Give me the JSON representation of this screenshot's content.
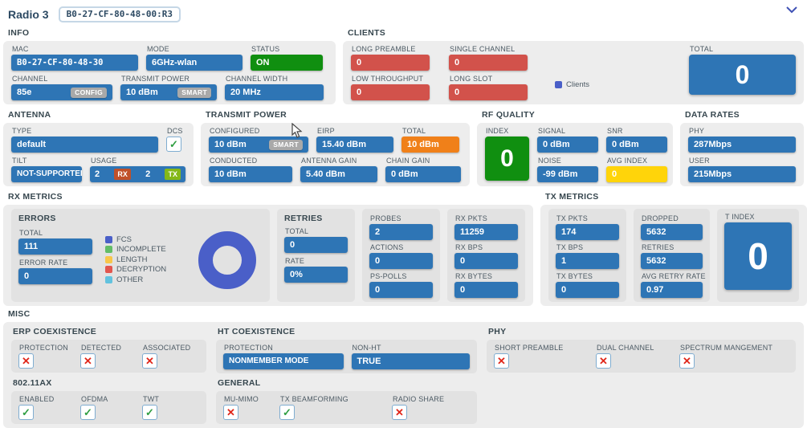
{
  "colors": {
    "blue": "#2e75b5",
    "red": "#d2524b",
    "green": "#108f10",
    "orange": "#f08019",
    "yellow": "#ffd40a",
    "navy": "#2d4a63",
    "panel": "#ededed",
    "subpanel": "#e2e2e2",
    "indigo": "#3f51b5",
    "check_green": "#2f9e41",
    "cross_red": "#e02619",
    "rx_badge": "#c05029",
    "tx_badge": "#84b818",
    "badge_gray": "#a9a9a9",
    "checkbox_border": "#7fadd1",
    "label": "#4c5a64",
    "sec_label": "#37474f"
  },
  "header": {
    "title": "Radio 3",
    "badge": "B0-27-CF-80-48-00:R3"
  },
  "info": {
    "label": "INFO",
    "mac": {
      "label": "MAC",
      "value": "B0-27-CF-80-48-30"
    },
    "mode": {
      "label": "MODE",
      "value": "6GHz-wlan"
    },
    "status": {
      "label": "STATUS",
      "value": "ON"
    },
    "channel": {
      "label": "CHANNEL",
      "value": "85e",
      "badge": "CONFIG"
    },
    "transmit_power": {
      "label": "TRANSMIT POWER",
      "value": "10 dBm",
      "badge": "SMART"
    },
    "channel_width": {
      "label": "CHANNEL WIDTH",
      "value": "20 MHz"
    }
  },
  "clients": {
    "label": "CLIENTS",
    "long_preamble": {
      "label": "LONG PREAMBLE",
      "value": "0"
    },
    "single_channel": {
      "label": "SINGLE CHANNEL",
      "value": "0"
    },
    "low_throughput": {
      "label": "LOW THROUGHPUT",
      "value": "0"
    },
    "long_slot": {
      "label": "LONG SLOT",
      "value": "0"
    },
    "legend_label": "Clients",
    "legend_color": "#4a5fc8",
    "total": {
      "label": "TOTAL",
      "value": "0"
    }
  },
  "antenna": {
    "label": "ANTENNA",
    "type": {
      "label": "TYPE",
      "value": "default"
    },
    "dcs": {
      "label": "DCS",
      "checked": true
    },
    "tilt": {
      "label": "TILT",
      "value": "NOT-SUPPORTED"
    },
    "usage": {
      "label": "USAGE",
      "rx_value": "2",
      "rx_badge": "RX",
      "tx_value": "2",
      "tx_badge": "TX"
    }
  },
  "transmit_power": {
    "label": "TRANSMIT POWER",
    "configured": {
      "label": "CONFIGURED",
      "value": "10 dBm",
      "badge": "SMART"
    },
    "eirp": {
      "label": "EIRP",
      "value": "15.40 dBm"
    },
    "total": {
      "label": "TOTAL",
      "value": "10 dBm"
    },
    "conducted": {
      "label": "CONDUCTED",
      "value": "10 dBm"
    },
    "antenna_gain": {
      "label": "ANTENNA GAIN",
      "value": "5.40 dBm"
    },
    "chain_gain": {
      "label": "CHAIN GAIN",
      "value": "0 dBm"
    }
  },
  "rf_quality": {
    "label": "RF QUALITY",
    "index": {
      "label": "INDEX",
      "value": "0"
    },
    "signal": {
      "label": "SIGNAL",
      "value": "0 dBm"
    },
    "snr": {
      "label": "SNR",
      "value": "0 dBm"
    },
    "noise": {
      "label": "NOISE",
      "value": "-99 dBm"
    },
    "avg_index": {
      "label": "AVG INDEX",
      "value": "0"
    }
  },
  "data_rates": {
    "label": "DATA RATES",
    "phy": {
      "label": "PHY",
      "value": "287Mbps"
    },
    "user": {
      "label": "USER",
      "value": "215Mbps"
    }
  },
  "rx_metrics": {
    "label": "RX METRICS",
    "errors": {
      "label": "ERRORS",
      "total": {
        "label": "TOTAL",
        "value": "111"
      },
      "error_rate": {
        "label": "ERROR RATE",
        "value": "0"
      },
      "legend": [
        {
          "label": "FCS",
          "color": "#4a5fc8"
        },
        {
          "label": "INCOMPLETE",
          "color": "#63bd67"
        },
        {
          "label": "LENGTH",
          "color": "#f8c64a"
        },
        {
          "label": "DECRYPTION",
          "color": "#e2564e"
        },
        {
          "label": "OTHER",
          "color": "#62c2de"
        }
      ]
    },
    "retries": {
      "label": "RETRIES",
      "total": {
        "label": "TOTAL",
        "value": "0"
      },
      "rate": {
        "label": "RATE",
        "value": "0%"
      }
    },
    "probes": {
      "label": "PROBES",
      "value": "2"
    },
    "actions": {
      "label": "ACTIONS",
      "value": "0"
    },
    "ps_polls": {
      "label": "PS-POLLS",
      "value": "0"
    },
    "rx_pkts": {
      "label": "RX PKTS",
      "value": "11259"
    },
    "rx_bps": {
      "label": "RX BPS",
      "value": "0"
    },
    "rx_bytes": {
      "label": "RX BYTES",
      "value": "0"
    }
  },
  "tx_metrics": {
    "label": "TX METRICS",
    "tx_pkts": {
      "label": "TX PKTS",
      "value": "174"
    },
    "tx_bps": {
      "label": "TX BPS",
      "value": "1"
    },
    "tx_bytes": {
      "label": "TX BYTES",
      "value": "0"
    },
    "dropped": {
      "label": "DROPPED",
      "value": "5632"
    },
    "retries": {
      "label": "RETRIES",
      "value": "5632"
    },
    "avg_retry_rate": {
      "label": "AVG RETRY RATE",
      "value": "0.97"
    },
    "t_index": {
      "label": "T INDEX",
      "value": "0"
    }
  },
  "misc": {
    "label": "MISC",
    "erp_coexistence": {
      "label": "ERP COEXISTENCE",
      "protection": {
        "label": "PROTECTION",
        "checked": false
      },
      "detected": {
        "label": "DETECTED",
        "checked": false
      },
      "associated": {
        "label": "ASSOCIATED",
        "checked": false
      }
    },
    "ht_coexistence": {
      "label": "HT COEXISTENCE",
      "protection": {
        "label": "PROTECTION",
        "value": "NONMEMBER MODE"
      },
      "non_ht": {
        "label": "NON-HT",
        "value": "TRUE"
      }
    },
    "phy": {
      "label": "PHY",
      "short_preamble": {
        "label": "SHORT PREAMBLE",
        "checked": false
      },
      "dual_channel": {
        "label": "DUAL CHANNEL",
        "checked": false
      },
      "spectrum_mangement": {
        "label": "SPECTRUM MANGEMENT",
        "checked": false
      }
    },
    "ax": {
      "label": "802.11AX",
      "enabled": {
        "label": "ENABLED",
        "checked": true
      },
      "ofdma": {
        "label": "OFDMA",
        "checked": true
      },
      "twt": {
        "label": "TWT",
        "checked": true
      }
    },
    "general": {
      "label": "GENERAL",
      "mu_mimo": {
        "label": "MU-MIMO",
        "checked": false
      },
      "tx_beamforming": {
        "label": "TX BEAMFORMING",
        "checked": true
      },
      "radio_share": {
        "label": "RADIO SHARE",
        "checked": false
      }
    }
  },
  "chart_data": {
    "type": "pie",
    "title": "RX ERRORS",
    "labels": [
      "FCS",
      "INCOMPLETE",
      "LENGTH",
      "DECRYPTION",
      "OTHER"
    ],
    "values": [
      111,
      0,
      0,
      0,
      0
    ],
    "colors": [
      "#4a5fc8",
      "#63bd67",
      "#f8c64a",
      "#e2564e",
      "#62c2de"
    ],
    "donut": true,
    "legend_position": "left"
  }
}
